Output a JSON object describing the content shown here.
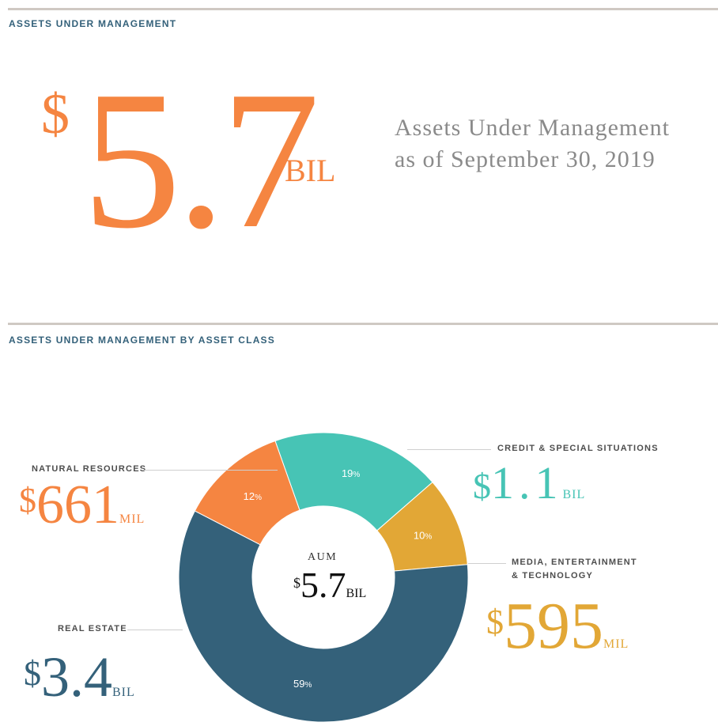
{
  "top_section": {
    "title": "ASSETS UNDER MANAGEMENT",
    "big_value": {
      "currency": "$",
      "number": "5.7",
      "unit": "BIL"
    },
    "description_line1": "Assets Under Management",
    "description_line2": "as of September 30, 2019"
  },
  "class_section": {
    "title": "ASSETS UNDER MANAGEMENT BY ASSET CLASS"
  },
  "center": {
    "label": "AUM",
    "currency": "$",
    "number": "5.7",
    "unit": "BIL"
  },
  "chart_data": {
    "type": "pie",
    "style": "donut",
    "title": "ASSETS UNDER MANAGEMENT BY ASSET CLASS",
    "total": {
      "value": 5.7,
      "unit": "BIL"
    },
    "slices": [
      {
        "key": "credit",
        "label": "CREDIT & SPECIAL SITUATIONS",
        "percent": 19,
        "pct_text": "19",
        "amount": {
          "currency": "$",
          "number": "1.1",
          "unit": "BIL"
        },
        "color": "#47c4b5"
      },
      {
        "key": "media",
        "label_line1": "MEDIA, ENTERTAINMENT",
        "label_line2": "& TECHNOLOGY",
        "percent": 10,
        "pct_text": "10",
        "amount": {
          "currency": "$",
          "number": "595",
          "unit": "MIL"
        },
        "color": "#e2a736"
      },
      {
        "key": "real_estate",
        "label": "REAL ESTATE",
        "percent": 59,
        "pct_text": "59",
        "amount": {
          "currency": "$",
          "number": "3.4",
          "unit": "BIL"
        },
        "color": "#34617a"
      },
      {
        "key": "natural",
        "label": "NATURAL RESOURCES",
        "percent": 12,
        "pct_text": "12",
        "amount": {
          "currency": "$",
          "number": "661",
          "unit": "MIL"
        },
        "color": "#f58541"
      }
    ],
    "percent_symbol": "%"
  },
  "colors": {
    "orange": "#f58541",
    "teal": "#47c4b5",
    "gold": "#e2a736",
    "navy": "#34617a",
    "rule": "#cfc9c3"
  }
}
